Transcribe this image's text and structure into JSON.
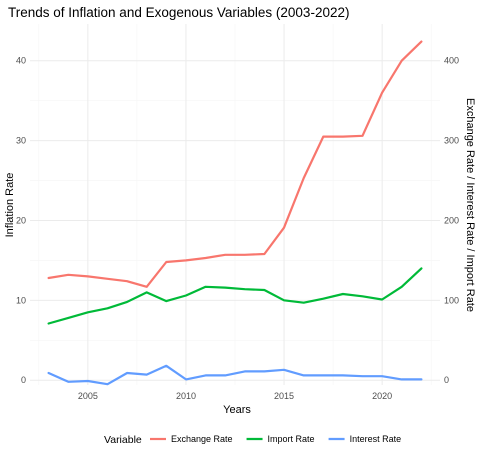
{
  "chart_data": {
    "type": "line",
    "title": "Trends of Inflation and Exogenous Variables (2003-2022)",
    "xlabel": "Years",
    "ylabel": "Inflation Rate",
    "y2label": "Exchange Rate / Interest Rate / Import Rate",
    "x": [
      2003,
      2004,
      2005,
      2006,
      2007,
      2008,
      2009,
      2010,
      2011,
      2012,
      2013,
      2014,
      2015,
      2016,
      2017,
      2018,
      2019,
      2020,
      2021,
      2022
    ],
    "xlim": [
      2002.05,
      2022.95
    ],
    "ylim": [
      -0.6,
      44.6
    ],
    "y2lim": [
      -6,
      446
    ],
    "x_ticks": [
      2005,
      2010,
      2015,
      2020
    ],
    "y_ticks": [
      0,
      10,
      20,
      30,
      40
    ],
    "y2_ticks": [
      0,
      100,
      200,
      300,
      400
    ],
    "grid": true,
    "legend": {
      "title": "Variable",
      "position": "bottom"
    },
    "series": [
      {
        "name": "Exchange Rate",
        "color": "#F8766D",
        "values": [
          128,
          132,
          130,
          127,
          124,
          117,
          148,
          150,
          153,
          157,
          157,
          158,
          191,
          253,
          305,
          305,
          306,
          360,
          400,
          424
        ]
      },
      {
        "name": "Import Rate",
        "color": "#00BA38",
        "values": [
          71,
          78,
          85,
          90,
          98,
          110,
          99,
          106,
          117,
          116,
          114,
          113,
          100,
          97,
          102,
          108,
          105,
          101,
          117,
          140
        ]
      },
      {
        "name": "Interest Rate",
        "color": "#619CFF",
        "values": [
          9,
          -2,
          -1,
          -5,
          9,
          7,
          18,
          1,
          6,
          6,
          11,
          11,
          13,
          6,
          6,
          6,
          5,
          5,
          1,
          1
        ]
      }
    ]
  }
}
